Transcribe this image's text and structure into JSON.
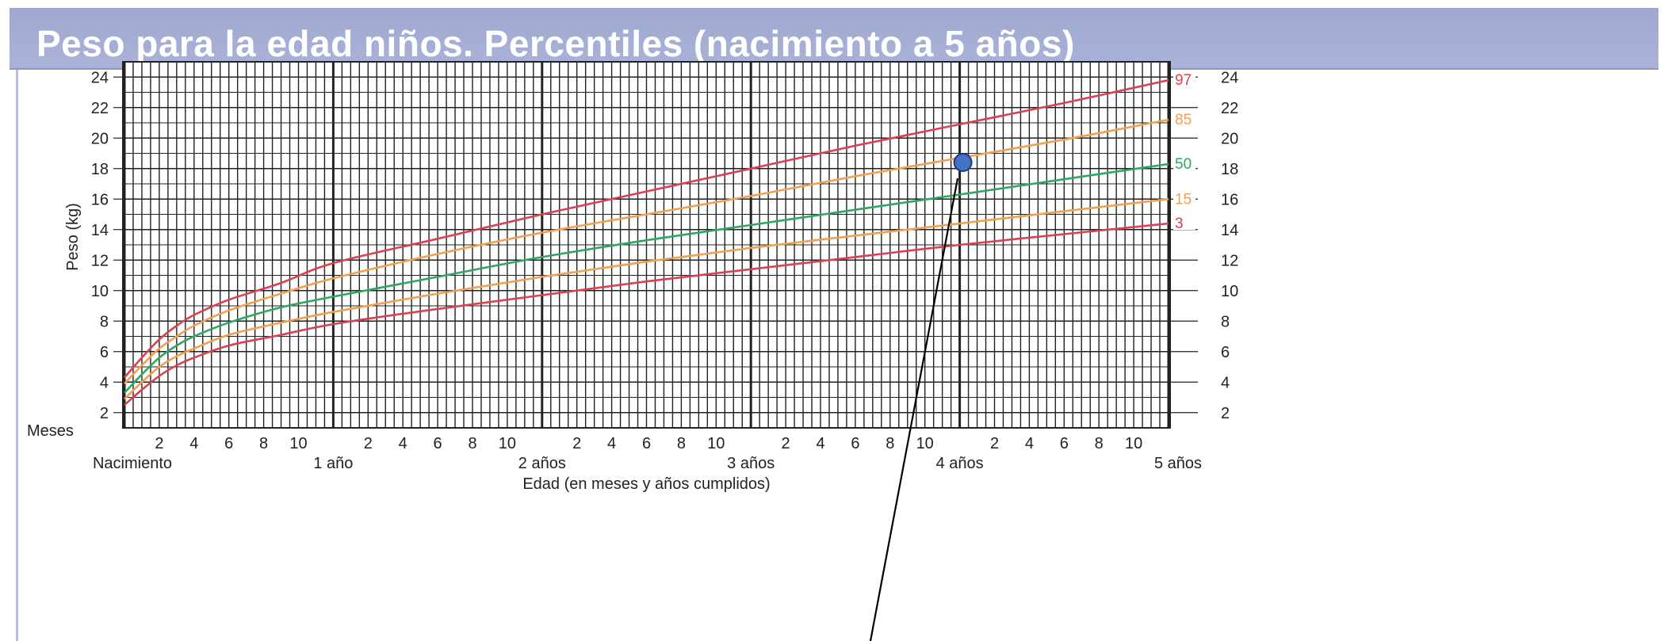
{
  "header": {
    "title": "Peso para la edad niños. Percentiles (nacimiento a 5 años)"
  },
  "chart_data": {
    "type": "line",
    "title": "Peso para la edad niños. Percentiles (nacimiento a 5 años)",
    "xlabel": "Edad (en meses y años cumplidos)",
    "ylabel": "Peso (kg)",
    "xlim": [
      0,
      60
    ],
    "ylim": [
      1,
      25
    ],
    "grid": true,
    "y_ticks": [
      2,
      4,
      6,
      8,
      10,
      12,
      14,
      16,
      18,
      20,
      22,
      24
    ],
    "x_month_ticks": [
      2,
      4,
      6,
      8,
      10
    ],
    "x_month_tick_labels": [
      "2",
      "4",
      "6",
      "8",
      "10"
    ],
    "x_axis_prefix": "Meses",
    "x_year_labels": [
      {
        "x": 0,
        "label": "Nacimiento"
      },
      {
        "x": 12,
        "label": "1 año"
      },
      {
        "x": 24,
        "label": "2 años"
      },
      {
        "x": 36,
        "label": "3 años"
      },
      {
        "x": 48,
        "label": "4 años"
      },
      {
        "x": 60,
        "label": "5 años"
      }
    ],
    "x": [
      0,
      1,
      2,
      3,
      4,
      6,
      9,
      12,
      18,
      24,
      30,
      36,
      42,
      48,
      54,
      60
    ],
    "series": [
      {
        "name": "97",
        "color": "#d8434f",
        "values": [
          4.3,
          5.6,
          6.8,
          7.7,
          8.4,
          9.4,
          10.5,
          11.8,
          13.4,
          15.0,
          16.5,
          18.0,
          19.5,
          20.9,
          22.3,
          23.8
        ]
      },
      {
        "name": "85",
        "color": "#f0a050",
        "values": [
          3.9,
          5.1,
          6.2,
          7.0,
          7.7,
          8.7,
          9.8,
          10.8,
          12.4,
          13.8,
          15.0,
          16.2,
          17.5,
          18.7,
          19.9,
          21.2
        ]
      },
      {
        "name": "50",
        "color": "#2ea860",
        "values": [
          3.3,
          4.5,
          5.6,
          6.4,
          7.0,
          7.9,
          8.9,
          9.6,
          10.9,
          12.2,
          13.3,
          14.3,
          15.3,
          16.3,
          17.3,
          18.3
        ]
      },
      {
        "name": "15",
        "color": "#f0a050",
        "values": [
          2.9,
          4.0,
          5.0,
          5.7,
          6.2,
          7.1,
          7.9,
          8.6,
          9.8,
          10.9,
          11.9,
          12.8,
          13.6,
          14.4,
          15.2,
          16.0
        ]
      },
      {
        "name": "3",
        "color": "#d8434f",
        "values": [
          2.5,
          3.5,
          4.4,
          5.1,
          5.6,
          6.4,
          7.1,
          7.8,
          8.8,
          9.7,
          10.6,
          11.4,
          12.2,
          13.0,
          13.7,
          14.4
        ]
      }
    ],
    "annotation_point": {
      "x": 48,
      "y": 18.4,
      "color": "#4472c4"
    }
  }
}
